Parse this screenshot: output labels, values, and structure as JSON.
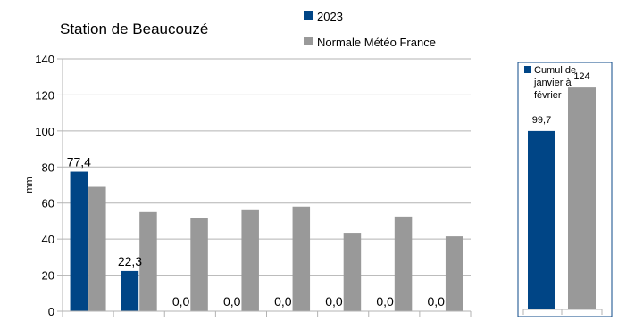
{
  "colors": {
    "series_2023": "#004586",
    "series_normale": "#999999",
    "grid": "#b3b3b3",
    "axis": "#b3b3b3",
    "side_border": "#0c4a8a"
  },
  "chart_data": [
    {
      "type": "bar",
      "title": "Station de Beaucouzé",
      "ylabel": "mm",
      "xlabel": "",
      "ylim": [
        0,
        140
      ],
      "yticks": [
        "0",
        "20",
        "40",
        "60",
        "80",
        "100",
        "120",
        "140"
      ],
      "grid": true,
      "legend_position": "top-right",
      "categories": [
        "",
        "",
        "",
        "",
        "",
        "",
        "",
        ""
      ],
      "series": [
        {
          "name": "2023",
          "values": [
            77.4,
            22.3,
            0,
            0,
            0,
            0,
            0,
            0
          ],
          "labels": [
            "77,4",
            "22,3",
            "0,0",
            "0,0",
            "0,0",
            "0,0",
            "0,0",
            "0,0"
          ]
        },
        {
          "name": "Normale Météo France",
          "values": [
            69,
            55,
            51.5,
            56.5,
            58,
            43.5,
            52.5,
            41.5
          ]
        }
      ]
    },
    {
      "type": "bar",
      "legend_label": "Cumul de janvier à février",
      "legend_lines": [
        "Cumul de",
        "janvier à",
        "février"
      ],
      "ylim": [
        0,
        140
      ],
      "values": [
        99.7,
        124
      ],
      "labels": [
        "99,7",
        "124"
      ]
    }
  ]
}
